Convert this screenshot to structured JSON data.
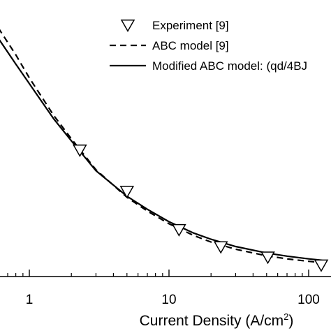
{
  "chart_data": {
    "type": "line",
    "xlabel": "Current Density (A/cm²)",
    "xlabel_main": "Current Density (A/cm",
    "xlabel_sup": "2",
    "xlabel_end": ")",
    "x_scale": "log",
    "xlim": [
      0.6,
      125
    ],
    "x_ticks": [
      1,
      10,
      100
    ],
    "x_tick_labels": [
      "1",
      "10",
      "100"
    ],
    "ylabel": "",
    "y_tick_labels": [],
    "grid": false,
    "legend_position": "top-right",
    "series": [
      {
        "name": "Experiment [9]",
        "style": "triangle-down-open",
        "x": [
          2.3,
          5.0,
          11.8,
          23.5,
          51,
          123
        ],
        "y": [
          0.645,
          0.525,
          0.414,
          0.364,
          0.334,
          0.311
        ]
      },
      {
        "name": "ABC model [9]",
        "style": "dashed",
        "x": [
          0.6,
          0.8,
          1,
          1.5,
          2,
          3,
          5,
          7,
          10,
          15,
          20,
          30,
          50,
          70,
          100,
          125
        ],
        "y": [
          1.0,
          0.922,
          0.855,
          0.745,
          0.678,
          0.588,
          0.508,
          0.468,
          0.431,
          0.397,
          0.378,
          0.357,
          0.338,
          0.329,
          0.322,
          0.318
        ]
      },
      {
        "name": "Modified ABC model: (qd/4BJ",
        "style": "solid",
        "x": [
          0.6,
          0.8,
          1,
          1.5,
          2,
          3,
          5,
          7,
          10,
          15,
          20,
          30,
          50,
          70,
          100,
          125
        ],
        "y": [
          0.97,
          0.895,
          0.838,
          0.735,
          0.672,
          0.585,
          0.511,
          0.473,
          0.437,
          0.404,
          0.386,
          0.365,
          0.346,
          0.337,
          0.329,
          0.325
        ]
      }
    ]
  },
  "colors": {
    "axis": "#000000",
    "lines": "#000000",
    "marker_fill": "#ffffff",
    "background": "#ffffff"
  }
}
